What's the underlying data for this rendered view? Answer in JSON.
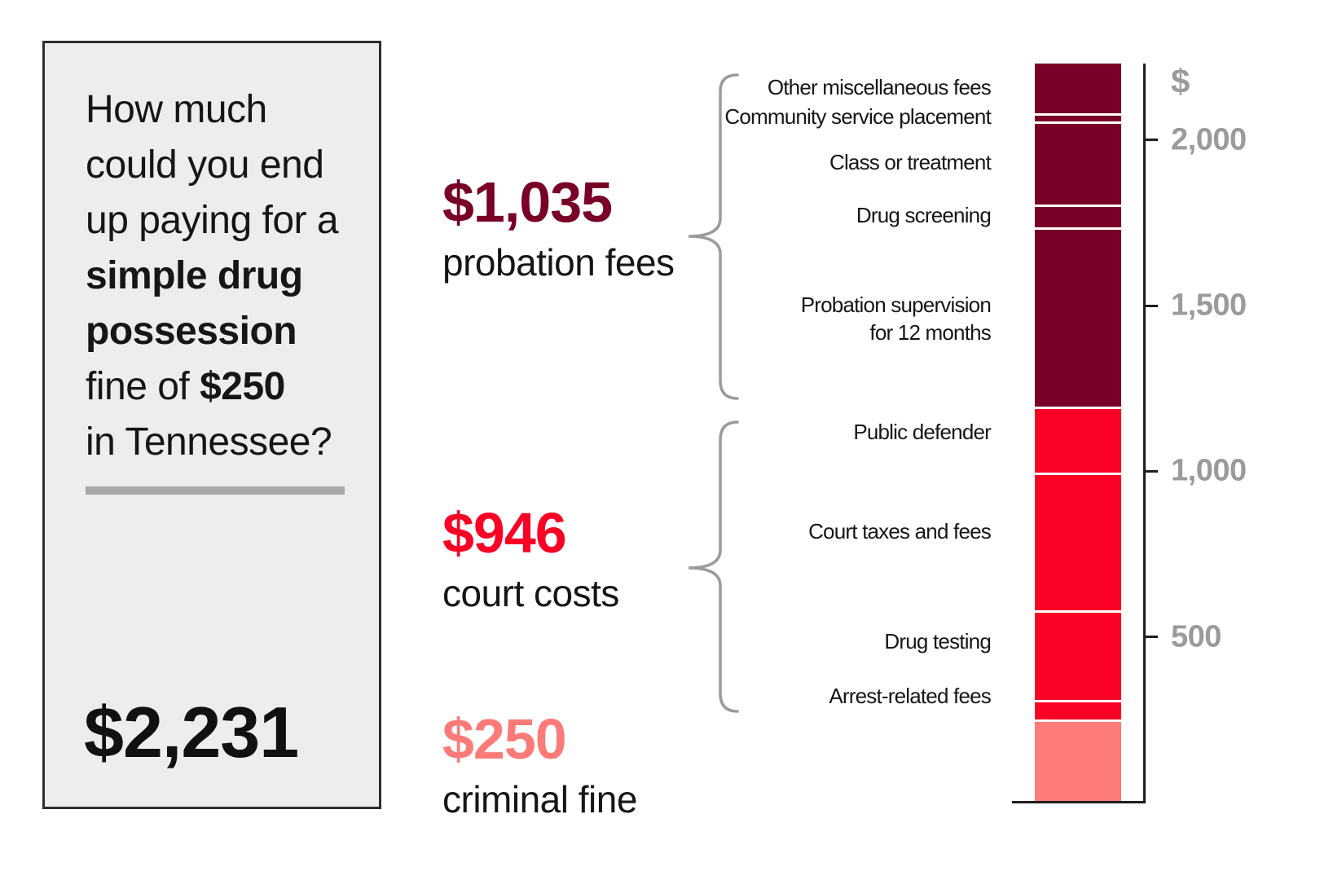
{
  "panel": {
    "question": {
      "line1": "How much",
      "line2": "could you end",
      "line3": "up paying for a",
      "line4_bold": "simple drug",
      "line5_bold": "possession",
      "line6_prefix": "fine of ",
      "line6_amount": "$250",
      "line7": "in Tennessee?"
    },
    "total_amount": "$2,231"
  },
  "axis": {
    "currency_symbol": "$"
  },
  "colors": {
    "probation": "#790026",
    "court": "#FA0225",
    "fine": "#FC7B79",
    "axis_text": "#9B9B9B",
    "brace": "#9B9B9B",
    "axis_line": "#1F1F1F",
    "panel_bg": "#EDEDED",
    "panel_border": "#2E2E2E",
    "divider": "#A8A8A8",
    "text": "#161616"
  },
  "chart_data": {
    "type": "bar",
    "title": "How much could you end up paying for a simple drug possession fine of $250 in Tennessee?",
    "unit": "USD",
    "total": 2231,
    "total_label": "$2,231",
    "ylim": [
      0,
      2231
    ],
    "axis_ticks": [
      2000,
      1500,
      1000,
      500
    ],
    "axis_tick_labels": [
      "2,000",
      "1,500",
      "1,000",
      "500"
    ],
    "currency_symbol": "$",
    "grid": false,
    "legend_position": "left",
    "stack_order": "top-to-bottom",
    "groups": [
      {
        "name": "probation fees",
        "amount_label": "$1,035",
        "value": 1035,
        "color": "#790026"
      },
      {
        "name": "court costs",
        "amount_label": "$946",
        "value": 946,
        "color": "#FA0225"
      },
      {
        "name": "criminal fine",
        "amount_label": "$250",
        "value": 250,
        "color": "#FC7B79"
      }
    ],
    "segments": [
      {
        "label": "Other miscellaneous fees",
        "group": "probation fees",
        "value": 150
      },
      {
        "label": "Community service placement",
        "group": "probation fees",
        "value": 25
      },
      {
        "label": "Class or treatment",
        "group": "probation fees",
        "value": 250
      },
      {
        "label": "Drug screening",
        "group": "probation fees",
        "value": 70
      },
      {
        "label": "Probation supervision\nfor 12 months",
        "group": "probation fees",
        "value": 540
      },
      {
        "label": "Public defender",
        "group": "court costs",
        "value": 200
      },
      {
        "label": "Court taxes and fees",
        "group": "court costs",
        "value": 416
      },
      {
        "label": "Drug testing",
        "group": "court costs",
        "value": 270
      },
      {
        "label": "Arrest-related fees",
        "group": "court costs",
        "value": 60
      },
      {
        "label": null,
        "group": "criminal fine",
        "value": 250
      }
    ]
  }
}
